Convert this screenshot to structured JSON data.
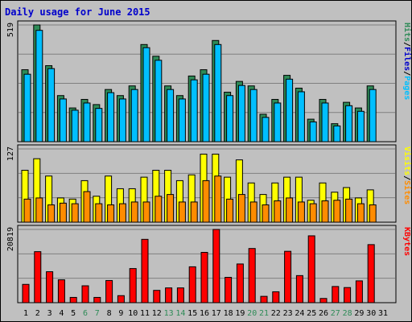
{
  "chart_data": [
    {
      "type": "bar",
      "title": "Daily usage for June 2015",
      "y_max_label": "519",
      "ylim": [
        0,
        519
      ],
      "grid": true,
      "categories": [
        "1",
        "2",
        "3",
        "4",
        "5",
        "6",
        "7",
        "8",
        "9",
        "10",
        "11",
        "12",
        "13",
        "14",
        "15",
        "16",
        "17",
        "18",
        "19",
        "20",
        "21",
        "22",
        "23",
        "24",
        "25",
        "26",
        "27",
        "28",
        "29",
        "30",
        "31"
      ],
      "weekend_days": [
        "6",
        "7",
        "13",
        "14",
        "20",
        "21",
        "27",
        "28"
      ],
      "series": [
        {
          "name": "Hits",
          "color": "#2e8b57",
          "values": [
            320,
            519,
            338,
            205,
            150,
            188,
            165,
            232,
            205,
            248,
            432,
            380,
            248,
            205,
            292,
            320,
            450,
            220,
            268,
            248,
            122,
            188,
            295,
            238,
            100,
            188,
            80,
            175,
            150,
            248,
            0
          ]
        },
        {
          "name": "Files",
          "color": "#00bfff",
          "values": [
            300,
            495,
            325,
            190,
            140,
            172,
            148,
            218,
            190,
            232,
            418,
            362,
            232,
            190,
            275,
            300,
            432,
            205,
            250,
            232,
            108,
            172,
            278,
            222,
            88,
            172,
            70,
            160,
            135,
            232,
            0
          ]
        }
      ],
      "legend": [
        "Pages",
        "Files",
        "Hits"
      ]
    },
    {
      "type": "bar",
      "y_max_label": "127",
      "ylim": [
        0,
        127
      ],
      "grid": true,
      "categories": [
        "1",
        "2",
        "3",
        "4",
        "5",
        "6",
        "7",
        "8",
        "9",
        "10",
        "11",
        "12",
        "13",
        "14",
        "15",
        "16",
        "17",
        "18",
        "19",
        "20",
        "21",
        "22",
        "23",
        "24",
        "25",
        "26",
        "27",
        "28",
        "29",
        "30",
        "31"
      ],
      "series": [
        {
          "name": "Visits",
          "color": "#ffff00",
          "values": [
            90,
            110,
            80,
            42,
            40,
            72,
            45,
            80,
            58,
            58,
            78,
            90,
            90,
            72,
            82,
            118,
            118,
            78,
            108,
            68,
            48,
            68,
            78,
            78,
            38,
            68,
            52,
            60,
            42,
            56,
            0
          ]
        },
        {
          "name": "Sites",
          "color": "#ff8c00",
          "values": [
            40,
            42,
            30,
            33,
            32,
            53,
            32,
            30,
            32,
            35,
            35,
            45,
            48,
            35,
            35,
            72,
            80,
            40,
            48,
            35,
            30,
            37,
            42,
            35,
            32,
            37,
            38,
            40,
            32,
            30,
            0
          ]
        }
      ],
      "legend": [
        "Sites",
        "Visits"
      ]
    },
    {
      "type": "bar",
      "y_max_label": "20819",
      "ylim": [
        0,
        20819
      ],
      "grid": true,
      "categories": [
        "1",
        "2",
        "3",
        "4",
        "5",
        "6",
        "7",
        "8",
        "9",
        "10",
        "11",
        "12",
        "13",
        "14",
        "15",
        "16",
        "17",
        "18",
        "19",
        "20",
        "21",
        "22",
        "23",
        "24",
        "25",
        "26",
        "27",
        "28",
        "29",
        "30",
        "31"
      ],
      "series": [
        {
          "name": "KBytes",
          "color": "#ff0000",
          "values": [
            5200,
            14500,
            8800,
            6500,
            1500,
            4800,
            1500,
            6300,
            2000,
            9700,
            18000,
            3500,
            4200,
            4200,
            10200,
            14300,
            20819,
            7200,
            11000,
            15400,
            1800,
            3100,
            14600,
            7700,
            19000,
            1200,
            4600,
            4300,
            6200,
            16500,
            0
          ]
        }
      ],
      "legend": [
        "KBytes"
      ]
    }
  ]
}
